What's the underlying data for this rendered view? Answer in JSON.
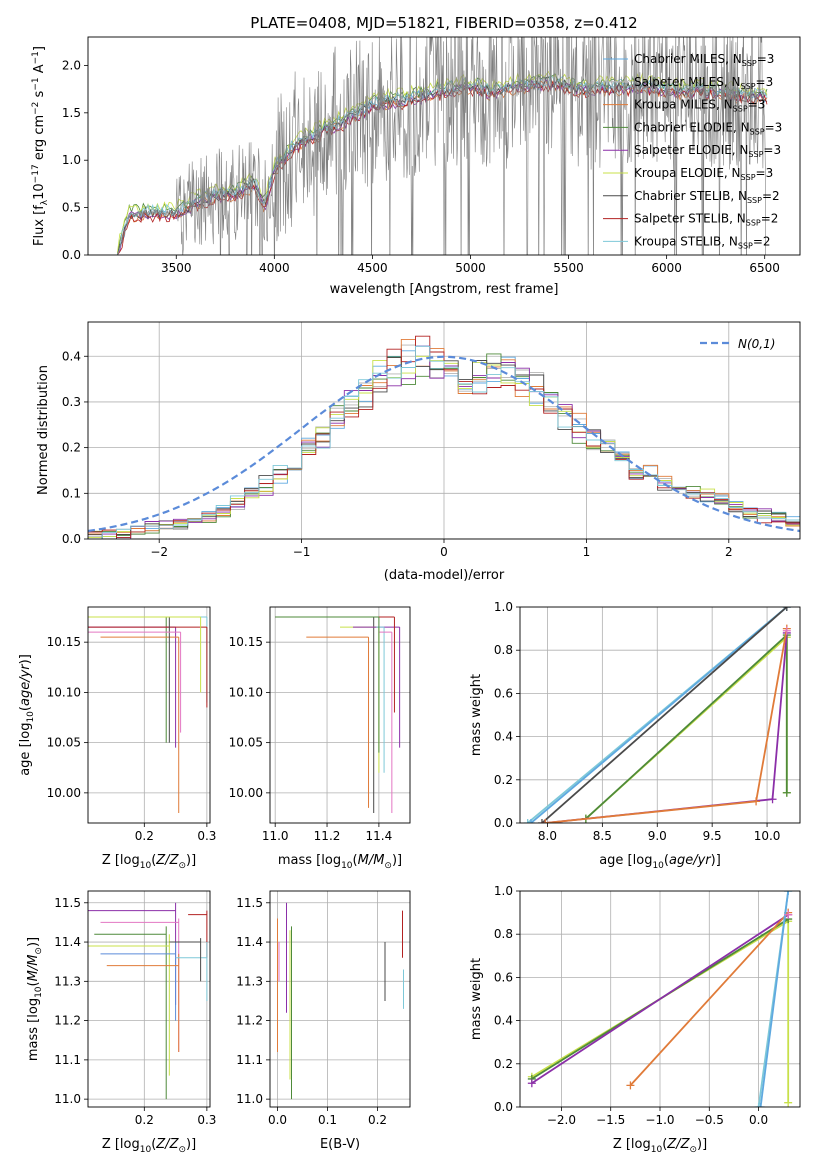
{
  "figure": {
    "title": "PLATE=0408, MJD=51821, FIBERID=0358, z=0.412"
  },
  "legend_spectrum": [
    {
      "label": "Chabrier MILES, N",
      "sub": "SSP",
      "suffix": "=3",
      "color": "#5fa9e0"
    },
    {
      "label": "Salpeter MILES, N",
      "sub": "SSP",
      "suffix": "=3",
      "color": "#b5b5b5"
    },
    {
      "label": "Kroupa MILES, N",
      "sub": "SSP",
      "suffix": "=3",
      "color": "#e07b39"
    },
    {
      "label": "Chabrier ELODIE, N",
      "sub": "SSP",
      "suffix": "=3",
      "color": "#4e8a3a"
    },
    {
      "label": "Salpeter ELODIE, N",
      "sub": "SSP",
      "suffix": "=3",
      "color": "#8b2fa8"
    },
    {
      "label": "Kroupa ELODIE, N",
      "sub": "SSP",
      "suffix": "=3",
      "color": "#c8e04a"
    },
    {
      "label": "Chabrier STELIB, N",
      "sub": "SSP",
      "suffix": "=2",
      "color": "#4a4a4a"
    },
    {
      "label": "Salpeter STELIB, N",
      "sub": "SSP",
      "suffix": "=2",
      "color": "#b22222"
    },
    {
      "label": "Kroupa STELIB, N",
      "sub": "SSP",
      "suffix": "=2",
      "color": "#7ec8d8"
    }
  ],
  "chart_data": [
    {
      "id": "spectrum",
      "type": "line",
      "xlabel": "wavelength [Angstrom, rest frame]",
      "ylabel_main": "Flux [f",
      "ylabel_sub": "λ",
      "ylabel_rest": "10",
      "ylabel_sup1": "−17",
      "ylabel_mid": " erg cm",
      "ylabel_sup2": "−2",
      "ylabel_s": " s",
      "ylabel_sup3": "−1",
      "ylabel_end": " A",
      "ylabel_sup4": "−1",
      "ylabel_close": "]",
      "xlim": [
        3050,
        6680
      ],
      "ylim": [
        0,
        2.3
      ],
      "xticks": [
        3500,
        4000,
        4500,
        5000,
        5500,
        6000,
        6500
      ],
      "yticks": [
        0.0,
        0.5,
        1.0,
        1.5,
        2.0
      ],
      "continuum": [
        [
          3200,
          0.0
        ],
        [
          3260,
          0.42
        ],
        [
          3400,
          0.45
        ],
        [
          3500,
          0.44
        ],
        [
          3600,
          0.55
        ],
        [
          3700,
          0.62
        ],
        [
          3800,
          0.65
        ],
        [
          3900,
          0.75
        ],
        [
          3950,
          0.5
        ],
        [
          4000,
          0.9
        ],
        [
          4100,
          1.15
        ],
        [
          4200,
          1.25
        ],
        [
          4300,
          1.35
        ],
        [
          4400,
          1.45
        ],
        [
          4500,
          1.58
        ],
        [
          4600,
          1.62
        ],
        [
          4700,
          1.65
        ],
        [
          4800,
          1.7
        ],
        [
          4900,
          1.75
        ],
        [
          5000,
          1.78
        ],
        [
          5100,
          1.72
        ],
        [
          5200,
          1.76
        ],
        [
          5300,
          1.8
        ],
        [
          5400,
          1.82
        ],
        [
          5500,
          1.78
        ],
        [
          5600,
          1.74
        ],
        [
          5700,
          1.76
        ],
        [
          5800,
          1.77
        ],
        [
          5900,
          1.78
        ],
        [
          6000,
          1.74
        ],
        [
          6100,
          1.72
        ],
        [
          6200,
          1.74
        ],
        [
          6300,
          1.7
        ],
        [
          6400,
          1.68
        ],
        [
          6500,
          1.66
        ]
      ]
    },
    {
      "id": "residuals",
      "type": "line",
      "xlabel": "(data-model)/error",
      "ylabel": "Normed distribution",
      "xlim": [
        -2.5,
        2.5
      ],
      "ylim": [
        0,
        0.475
      ],
      "xticks": [
        -2,
        -1,
        0,
        1,
        2
      ],
      "yticks": [
        0.0,
        0.1,
        0.2,
        0.3,
        0.4
      ],
      "legend_label": "N(0,1)",
      "gaussian": {
        "mu": 0,
        "sigma": 1,
        "color": "#5b8bd9"
      },
      "hist_envelope": [
        0.005,
        0.01,
        0.012,
        0.02,
        0.025,
        0.03,
        0.035,
        0.04,
        0.05,
        0.06,
        0.08,
        0.1,
        0.12,
        0.14,
        0.16,
        0.19,
        0.22,
        0.26,
        0.29,
        0.32,
        0.35,
        0.37,
        0.39,
        0.4,
        0.38,
        0.37,
        0.36,
        0.35,
        0.37,
        0.38,
        0.35,
        0.33,
        0.3,
        0.27,
        0.24,
        0.22,
        0.2,
        0.18,
        0.16,
        0.14,
        0.12,
        0.11,
        0.1,
        0.09,
        0.08,
        0.07,
        0.06,
        0.05,
        0.045,
        0.04
      ]
    },
    {
      "id": "age-vs-Z",
      "type": "scatter",
      "xlabel_main": "Z [log",
      "xlabel_sub": "10",
      "xlabel_end": "(Z/Z",
      "xlabel_sun": "⊙",
      "xlabel_close": ")]",
      "ylabel_main": "age  [log",
      "ylabel_sub": "10",
      "ylabel_end": "(age/yr)]",
      "xlim": [
        0.11,
        0.305
      ],
      "ylim": [
        9.97,
        10.185
      ],
      "xticks": [
        0.2,
        0.3
      ],
      "xticklabels": [
        "0.2",
        "0.3"
      ],
      "yticks": [
        10.0,
        10.05,
        10.1,
        10.15
      ],
      "yticklabels": [
        "10.00",
        "10.05",
        "10.10",
        "10.15"
      ],
      "points": [
        {
          "x": 0.235,
          "y": 10.175,
          "xlo": 0.11,
          "yhi": 10.175,
          "ylo": 10.05,
          "color": "#4e8a3a"
        },
        {
          "x": 0.25,
          "y": 10.165,
          "xlo": 0.11,
          "yhi": 10.165,
          "ylo": 10.045,
          "color": "#8b2fa8"
        },
        {
          "x": 0.255,
          "y": 10.155,
          "xlo": 0.13,
          "yhi": 10.155,
          "ylo": 9.98,
          "color": "#e07b39"
        },
        {
          "x": 0.3,
          "y": 10.175,
          "xlo": 0.11,
          "yhi": 10.175,
          "ylo": 10.09,
          "color": "#7ec8d8"
        },
        {
          "x": 0.3,
          "y": 10.165,
          "xlo": 0.11,
          "yhi": 10.165,
          "ylo": 10.085,
          "color": "#b22222"
        },
        {
          "x": 0.24,
          "y": 10.175,
          "xlo": 0.11,
          "yhi": 10.175,
          "ylo": 10.05,
          "color": "#4a4a4a"
        },
        {
          "x": 0.258,
          "y": 10.16,
          "xlo": 0.11,
          "yhi": 10.16,
          "ylo": 10.06,
          "color": "#e377c2"
        },
        {
          "x": 0.29,
          "y": 10.175,
          "xlo": 0.11,
          "yhi": 10.175,
          "ylo": 10.1,
          "color": "#c8e04a"
        }
      ]
    },
    {
      "id": "age-vs-mass",
      "type": "scatter",
      "xlabel_main": "mass [log",
      "xlabel_sub": "10",
      "xlabel_end": "(M/M",
      "xlabel_sun": "⊙",
      "xlabel_close": ")]",
      "xlim": [
        10.98,
        11.52
      ],
      "ylim": [
        9.97,
        10.185
      ],
      "xticks": [
        11.0,
        11.2,
        11.4
      ],
      "xticklabels": [
        "11.0",
        "11.2",
        "11.4"
      ],
      "yticks": [
        10.0,
        10.05,
        10.1,
        10.15
      ],
      "yticklabels": [
        "10.00",
        "10.05",
        "10.10",
        "10.15"
      ],
      "points": [
        {
          "x": 11.38,
          "y": 10.175,
          "xlo": 11.0,
          "yhi": 10.175,
          "ylo": 9.98,
          "color": "#4a4a4a"
        },
        {
          "x": 11.36,
          "y": 10.155,
          "xlo": 11.12,
          "yhi": 10.155,
          "ylo": 9.985,
          "color": "#e07b39"
        },
        {
          "x": 11.4,
          "y": 10.165,
          "xlo": 11.25,
          "yhi": 10.165,
          "ylo": 10.02,
          "color": "#c8e04a"
        },
        {
          "x": 11.48,
          "y": 10.165,
          "xlo": 11.3,
          "yhi": 10.165,
          "ylo": 10.045,
          "color": "#8b2fa8"
        },
        {
          "x": 11.46,
          "y": 10.175,
          "xlo": 11.33,
          "yhi": 10.175,
          "ylo": 10.08,
          "color": "#b22222"
        },
        {
          "x": 11.42,
          "y": 10.165,
          "xlo": 11.39,
          "yhi": 10.165,
          "ylo": 10.02,
          "color": "#7ec8d8"
        },
        {
          "x": 11.45,
          "y": 10.16,
          "xlo": 11.4,
          "yhi": 10.16,
          "ylo": 9.98,
          "color": "#e377c2"
        },
        {
          "x": 11.4,
          "y": 10.175,
          "xlo": 11.0,
          "yhi": 10.175,
          "ylo": 10.04,
          "color": "#4e8a3a"
        }
      ]
    },
    {
      "id": "weight-vs-age",
      "type": "line",
      "xlabel_main": "age  [log",
      "xlabel_sub": "10",
      "xlabel_end": "(age/yr)]",
      "ylabel": "mass weight",
      "xlim": [
        7.75,
        10.3
      ],
      "ylim": [
        0,
        1.0
      ],
      "xticks": [
        8.0,
        8.5,
        9.0,
        9.5,
        10.0
      ],
      "xticklabels": [
        "8.0",
        "8.5",
        "9.0",
        "9.5",
        "10.0"
      ],
      "yticks": [
        0.0,
        0.2,
        0.4,
        0.6,
        0.8,
        1.0
      ],
      "yticklabels": [
        "0.0",
        "0.2",
        "0.4",
        "0.6",
        "0.8",
        "1.0"
      ],
      "series": [
        {
          "color": "#7ec8d8",
          "points": [
            [
              7.82,
              0.0
            ],
            [
              10.18,
              1.0
            ]
          ]
        },
        {
          "color": "#5fa9e0",
          "points": [
            [
              7.85,
              0.0
            ],
            [
              10.18,
              1.0
            ]
          ]
        },
        {
          "color": "#4a4a4a",
          "points": [
            [
              7.95,
              0.0
            ],
            [
              10.18,
              1.0
            ]
          ]
        },
        {
          "color": "#c8e04a",
          "points": [
            [
              8.35,
              0.02
            ],
            [
              10.18,
              0.86
            ],
            [
              10.18,
              0.14
            ]
          ]
        },
        {
          "color": "#4e8a3a",
          "points": [
            [
              8.35,
              0.02
            ],
            [
              10.18,
              0.87
            ],
            [
              10.18,
              0.14
            ]
          ]
        },
        {
          "color": "#8b2fa8",
          "points": [
            [
              7.98,
              0.0
            ],
            [
              10.05,
              0.11
            ],
            [
              10.18,
              0.88
            ]
          ]
        },
        {
          "color": "#e07b39",
          "points": [
            [
              7.98,
              0.0
            ],
            [
              9.9,
              0.1
            ],
            [
              10.18,
              0.9
            ]
          ]
        },
        {
          "color": "#e377c2",
          "points": [
            [
              10.18,
              0.89
            ]
          ]
        }
      ]
    },
    {
      "id": "mass-vs-Z",
      "type": "scatter",
      "xlabel_main": "Z [log",
      "xlabel_sub": "10",
      "xlabel_end": "(Z/Z",
      "xlabel_sun": "⊙",
      "xlabel_close": ")]",
      "ylabel_main": "mass [log",
      "ylabel_sub": "10",
      "ylabel_end": "(M/M",
      "ylabel_sun": "⊙",
      "ylabel_close": ")]",
      "xlim": [
        0.11,
        0.305
      ],
      "ylim": [
        10.98,
        11.53
      ],
      "xticks": [
        0.2,
        0.3
      ],
      "xticklabels": [
        "0.2",
        "0.3"
      ],
      "yticks": [
        11.0,
        11.1,
        11.2,
        11.3,
        11.4,
        11.5
      ],
      "yticklabels": [
        "11.0",
        "11.1",
        "11.2",
        "11.3",
        "11.4",
        "11.5"
      ],
      "points": [
        {
          "x": 0.25,
          "y": 11.48,
          "xlo": 0.11,
          "yhi": 11.5,
          "ylo": 11.24,
          "color": "#8b2fa8"
        },
        {
          "x": 0.255,
          "y": 11.45,
          "xlo": 0.13,
          "yhi": 11.46,
          "ylo": 11.12,
          "color": "#e377c2"
        },
        {
          "x": 0.235,
          "y": 11.42,
          "xlo": 0.12,
          "yhi": 11.44,
          "ylo": 11.0,
          "color": "#4e8a3a"
        },
        {
          "x": 0.24,
          "y": 11.39,
          "xlo": 0.11,
          "yhi": 11.42,
          "ylo": 11.06,
          "color": "#c8e04a"
        },
        {
          "x": 0.25,
          "y": 11.37,
          "xlo": 0.13,
          "yhi": 11.4,
          "ylo": 11.2,
          "color": "#5b8bd9"
        },
        {
          "x": 0.255,
          "y": 11.34,
          "xlo": 0.14,
          "yhi": 11.37,
          "ylo": 11.12,
          "color": "#e07b39"
        },
        {
          "x": 0.3,
          "y": 11.47,
          "xlo": 0.27,
          "yhi": 11.48,
          "ylo": 11.36,
          "color": "#b22222"
        },
        {
          "x": 0.3,
          "y": 11.36,
          "xlo": 0.25,
          "yhi": 11.4,
          "ylo": 11.25,
          "color": "#7ec8d8"
        },
        {
          "x": 0.29,
          "y": 11.4,
          "xlo": 0.24,
          "yhi": 11.41,
          "ylo": 11.3,
          "color": "#4a4a4a"
        }
      ]
    },
    {
      "id": "mass-vs-EBV",
      "type": "scatter",
      "xlabel": "E(B-V)",
      "xlim": [
        -0.015,
        0.265
      ],
      "ylim": [
        10.98,
        11.53
      ],
      "xticks": [
        0.0,
        0.1,
        0.2
      ],
      "xticklabels": [
        "0.0",
        "0.1",
        "0.2"
      ],
      "yticks": [
        11.0,
        11.1,
        11.2,
        11.3,
        11.4,
        11.5
      ],
      "yticklabels": [
        "11.0",
        "11.1",
        "11.2",
        "11.3",
        "11.4",
        "11.5"
      ],
      "bars": [
        {
          "x": 0.0,
          "yhi": 11.46,
          "ylo": 11.12,
          "color": "#e07b39"
        },
        {
          "x": 0.003,
          "yhi": 11.4,
          "ylo": 11.3,
          "color": "#e377c2"
        },
        {
          "x": 0.018,
          "yhi": 11.5,
          "ylo": 11.22,
          "color": "#8b2fa8"
        },
        {
          "x": 0.028,
          "yhi": 11.44,
          "ylo": 11.0,
          "color": "#4e8a3a"
        },
        {
          "x": 0.025,
          "yhi": 11.43,
          "ylo": 11.05,
          "color": "#c8e04a"
        },
        {
          "x": 0.215,
          "yhi": 11.4,
          "ylo": 11.25,
          "color": "#4a4a4a"
        },
        {
          "x": 0.25,
          "yhi": 11.48,
          "ylo": 11.36,
          "color": "#b22222"
        },
        {
          "x": 0.252,
          "yhi": 11.33,
          "ylo": 11.23,
          "color": "#7ec8d8"
        }
      ]
    },
    {
      "id": "weight-vs-Z",
      "type": "line",
      "xlabel_main": "Z [log",
      "xlabel_sub": "10",
      "xlabel_end": "(Z/Z",
      "xlabel_sun": "⊙",
      "xlabel_close": ")]",
      "ylabel": "mass weight",
      "xlim": [
        -2.42,
        0.42
      ],
      "ylim": [
        0,
        1.0
      ],
      "xticks": [
        -2.0,
        -1.5,
        -1.0,
        -0.5,
        0.0
      ],
      "xticklabels": [
        "−2.0",
        "−1.5",
        "−1.0",
        "−0.5",
        "0.0"
      ],
      "yticks": [
        0.0,
        0.2,
        0.4,
        0.6,
        0.8,
        1.0
      ],
      "yticklabels": [
        "0.0",
        "0.2",
        "0.4",
        "0.6",
        "0.8",
        "1.0"
      ],
      "series": [
        {
          "color": "#c8e04a",
          "points": [
            [
              -2.3,
              0.14
            ],
            [
              0.3,
              0.86
            ],
            [
              0.3,
              0.02
            ]
          ]
        },
        {
          "color": "#4e8a3a",
          "points": [
            [
              -2.3,
              0.13
            ],
            [
              0.3,
              0.87
            ]
          ]
        },
        {
          "color": "#8b2fa8",
          "points": [
            [
              -2.3,
              0.11
            ],
            [
              0.3,
              0.89
            ]
          ]
        },
        {
          "color": "#e07b39",
          "points": [
            [
              -1.3,
              0.1
            ],
            [
              0.3,
              0.9
            ]
          ]
        },
        {
          "color": "#7ec8d8",
          "points": [
            [
              0.0,
              0.0
            ],
            [
              0.3,
              1.0
            ]
          ]
        },
        {
          "color": "#5fa9e0",
          "points": [
            [
              0.02,
              0.0
            ],
            [
              0.3,
              1.0
            ]
          ]
        },
        {
          "color": "#e377c2",
          "points": [
            [
              0.3,
              0.89
            ]
          ]
        }
      ]
    }
  ]
}
